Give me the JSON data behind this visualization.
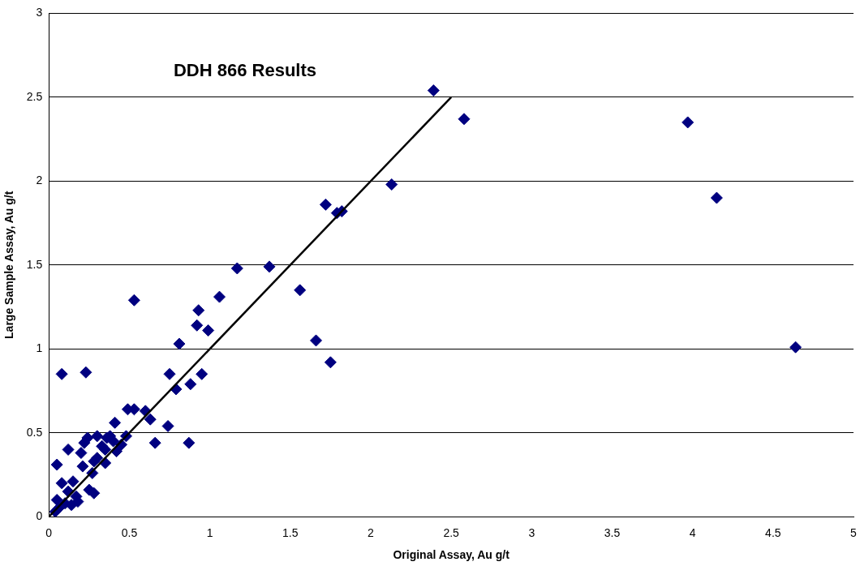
{
  "chart_data": {
    "type": "scatter",
    "title": "DDH 866 Results",
    "xlabel": "Original Assay, Au g/t",
    "ylabel": "Large Sample Assay, Au g/t",
    "xlim": [
      0,
      5
    ],
    "xticks": [
      0,
      0.5,
      1,
      1.5,
      2,
      2.5,
      3,
      3.5,
      4,
      4.5,
      5
    ],
    "ylim": [
      0,
      3
    ],
    "yticks": [
      0,
      0.5,
      1,
      1.5,
      2,
      2.5,
      3
    ],
    "grid": "y",
    "marker": "diamond",
    "series": [
      {
        "color": "#000080",
        "x": [
          0.08,
          0.23,
          0.53,
          0.05,
          0.12,
          0.08,
          0.15,
          0.12,
          0.18,
          0.14,
          0.05,
          0.04,
          0.06,
          0.1,
          0.2,
          0.22,
          0.24,
          0.21,
          0.25,
          0.28,
          0.27,
          0.3,
          0.3,
          0.33,
          0.35,
          0.38,
          0.4,
          0.42,
          0.41,
          0.45,
          0.48,
          0.49,
          0.53,
          0.6,
          0.63,
          0.66,
          0.74,
          0.75,
          0.79,
          0.81,
          0.87,
          0.88,
          0.92,
          0.93,
          0.95,
          0.99,
          1.06,
          1.17,
          1.37,
          1.56,
          1.66,
          1.72,
          1.75,
          1.79,
          1.82,
          2.13,
          2.39,
          2.58,
          3.97,
          4.15,
          4.64,
          0.35,
          0.28,
          0.17,
          0.36
        ],
        "values": [
          0.85,
          0.86,
          1.29,
          0.31,
          0.4,
          0.2,
          0.21,
          0.15,
          0.09,
          0.07,
          0.1,
          0.03,
          0.05,
          0.08,
          0.38,
          0.44,
          0.47,
          0.3,
          0.16,
          0.14,
          0.26,
          0.48,
          0.35,
          0.42,
          0.32,
          0.48,
          0.45,
          0.39,
          0.56,
          0.43,
          0.48,
          0.64,
          0.64,
          0.63,
          0.58,
          0.44,
          0.54,
          0.85,
          0.76,
          1.03,
          0.44,
          0.79,
          1.14,
          1.23,
          0.85,
          1.11,
          1.31,
          1.48,
          1.49,
          1.35,
          1.05,
          1.86,
          0.92,
          1.81,
          1.82,
          1.98,
          2.54,
          2.37,
          2.35,
          1.9,
          1.01,
          0.4,
          0.33,
          0.12,
          0.47
        ]
      },
      {
        "type": "line",
        "color": "#000000",
        "marker": "none",
        "x": [
          0,
          2.5
        ],
        "values": [
          0,
          2.5
        ]
      }
    ]
  }
}
